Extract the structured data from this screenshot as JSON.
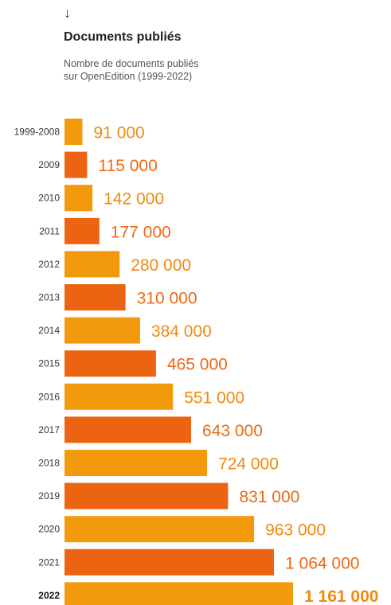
{
  "header": {
    "arrow": "↓",
    "title": "Documents publiés",
    "subtitle_line1": "Nombre de documents publiés",
    "subtitle_line2": "sur OpenEdition (1999-2022)"
  },
  "colors": {
    "light": "#F39A0C",
    "dark": "#EC6412",
    "label_light": "#F08A10",
    "label_dark": "#EC6A14"
  },
  "chart_data": {
    "type": "bar",
    "orientation": "horizontal",
    "categories": [
      "1999-2008",
      "2009",
      "2010",
      "2011",
      "2012",
      "2013",
      "2014",
      "2015",
      "2016",
      "2017",
      "2018",
      "2019",
      "2020",
      "2021",
      "2022"
    ],
    "values": [
      91000,
      115000,
      142000,
      177000,
      280000,
      310000,
      384000,
      465000,
      551000,
      643000,
      724000,
      831000,
      963000,
      1064000,
      1161000
    ],
    "value_labels": [
      "91 000",
      "115 000",
      "142 000",
      "177 000",
      "280 000",
      "310 000",
      "384 000",
      "465 000",
      "551 000",
      "643 000",
      "724 000",
      "831 000",
      "963 000",
      "1 064 000",
      "1 161 000"
    ],
    "title": "Documents publiés",
    "xlabel": "",
    "ylabel": "",
    "grid": false,
    "legend": "none"
  }
}
